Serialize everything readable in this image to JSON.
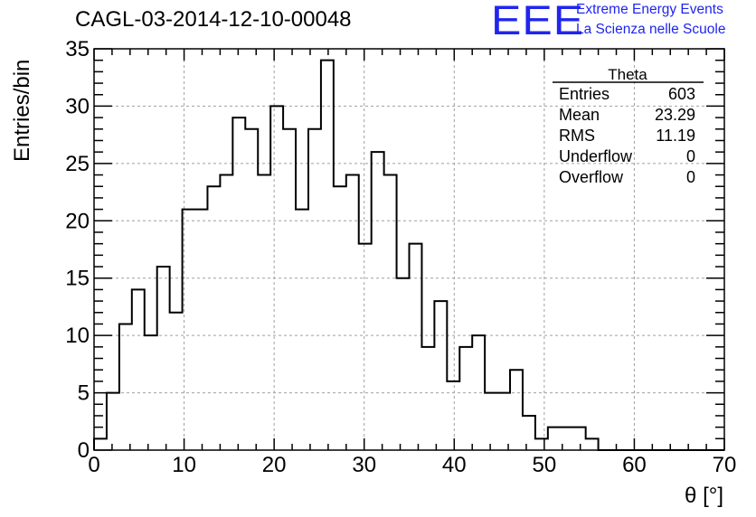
{
  "logo": {
    "text": "EEE",
    "line1": "Extreme Energy Events",
    "line2": "La Scienza nelle Scuole",
    "color": "#1f25ee"
  },
  "chart_data": {
    "type": "bar",
    "title": "CAGL-03-2014-12-10-00048",
    "xlabel": "θ [°]",
    "ylabel": "Entries/bin",
    "xlim": [
      0,
      70
    ],
    "ylim": [
      0,
      35
    ],
    "bin_width": 1.4,
    "x_ticks": [
      0,
      10,
      20,
      30,
      40,
      50,
      60,
      70
    ],
    "y_ticks": [
      0,
      5,
      10,
      15,
      20,
      25,
      30,
      35
    ],
    "grid": true,
    "values": [
      1,
      5,
      11,
      14,
      10,
      16,
      12,
      21,
      21,
      23,
      24,
      29,
      28,
      24,
      30,
      28,
      21,
      28,
      34,
      23,
      24,
      18,
      26,
      24,
      15,
      18,
      9,
      13,
      6,
      9,
      10,
      5,
      5,
      7,
      3,
      1,
      2,
      2,
      2,
      1,
      0,
      0,
      0,
      0,
      0,
      0,
      0,
      0,
      0,
      0
    ],
    "stats": {
      "name": "Theta",
      "rows": [
        {
          "label": "Entries",
          "value": "603"
        },
        {
          "label": "Mean",
          "value": "23.29"
        },
        {
          "label": "RMS",
          "value": "11.19"
        },
        {
          "label": "Underflow",
          "value": "0"
        },
        {
          "label": "Overflow",
          "value": "0"
        }
      ]
    }
  }
}
